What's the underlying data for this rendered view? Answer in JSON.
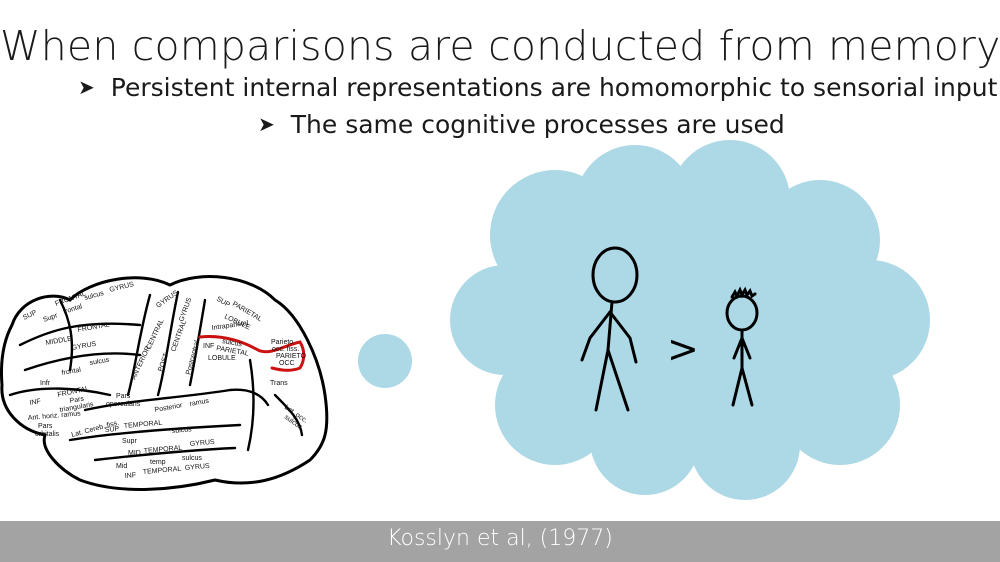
{
  "slide": {
    "title": "When comparisons are conducted from memory",
    "bullets": [
      "Persistent internal representations are homomorphic to sensorial input",
      "The same cognitive processes are used"
    ],
    "bullet_icon": "arrowhead-bullet-icon",
    "comparison_symbol": ">",
    "citation": "Kosslyn et al, (1977)"
  },
  "brain": {
    "labels": [
      "GYRUS",
      "FRONTAL",
      "sulcus",
      "SUP",
      "Supr",
      "frontal",
      "MIDDLE",
      "FRONTAL",
      "GYRUS",
      "sulcus",
      "frontal",
      "Infr",
      "INF",
      "FRONTAL",
      "Pars",
      "triangularis",
      "Ant. horiz. ramus",
      "Pars",
      "orbitalis",
      "Lat. Cereb. fiss.",
      "Pars",
      "opercularis",
      "Supr",
      "SUP",
      "TEMPORAL",
      "sulcus",
      "MID",
      "TEMPORAL",
      "GYRUS",
      "temp",
      "sulcus",
      "Mid",
      "INF",
      "TEMPORAL",
      "GYRUS",
      "Posterior",
      "ramus",
      "ANTERIOR",
      "CENTRAL",
      "GYRUS",
      "POST",
      "CENTRAL",
      "GYRUS",
      "SUP",
      "PARIETAL",
      "LOBULE",
      "Intraparietal",
      "sulcus",
      "INF",
      "PARIETAL",
      "LOBULE",
      "Postcentral",
      "Parieto",
      "occ. fiss.",
      "PARIETO",
      "OCC",
      "Lat. occ.",
      "sulcus",
      "Trans"
    ]
  },
  "colors": {
    "cloud": "#add8e6",
    "footer": "#a3a3a3",
    "sulcus_highlight": "#cc1111"
  }
}
